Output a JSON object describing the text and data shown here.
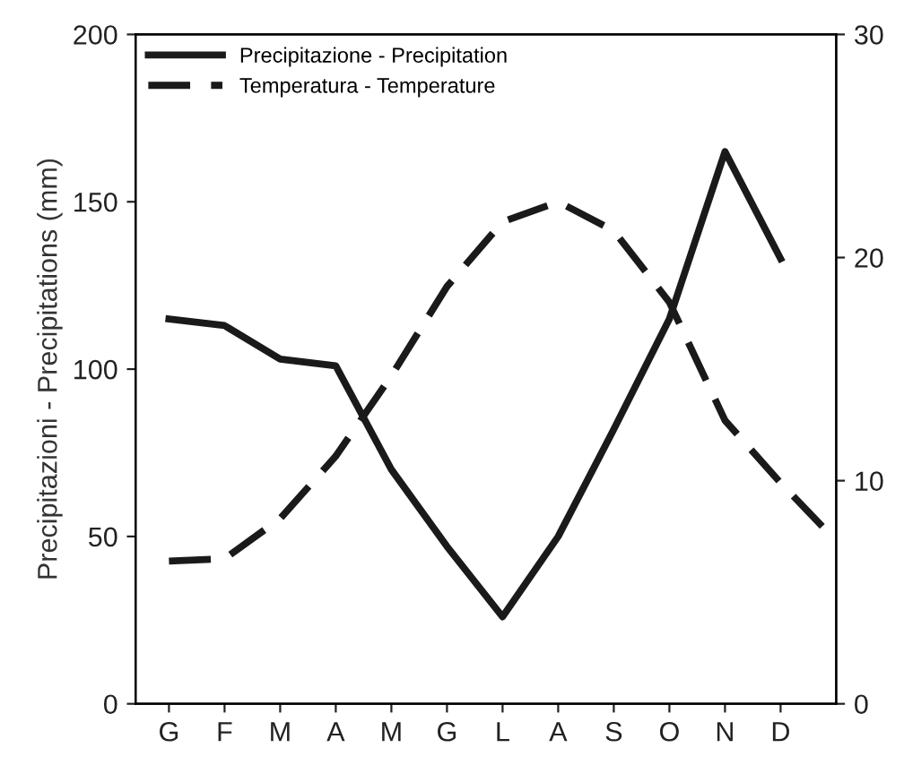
{
  "chart_data": {
    "type": "line",
    "ylabel": "Precipitazioni - Precipitations (mm)",
    "categories": [
      "G",
      "F",
      "M",
      "A",
      "M",
      "G",
      "L",
      "A",
      "S",
      "O",
      "N",
      "D",
      null
    ],
    "ylim": [
      0,
      200
    ],
    "yticks": [
      0,
      50,
      100,
      150,
      200
    ],
    "y2lim": [
      0,
      30
    ],
    "y2ticks": [
      0,
      10,
      20,
      30
    ],
    "series": [
      {
        "name": "Precipitazione - Precipitation",
        "color": "#1a1a1a",
        "line_style": "solid",
        "values": [
          115,
          113,
          103,
          101,
          70,
          47,
          26,
          50,
          82,
          115,
          165,
          133,
          null
        ]
      },
      {
        "name": "Temperatura - Temperature",
        "color": "#1a1a1a",
        "line_style": "dashed",
        "axis": "y2",
        "values": [
          6.4,
          6.5,
          8.3,
          11.1,
          14.7,
          18.7,
          21.6,
          22.5,
          21.2,
          18,
          12.7,
          9.9,
          7.3
        ]
      }
    ],
    "legend": "top left",
    "marker": "none",
    "grid": false
  }
}
